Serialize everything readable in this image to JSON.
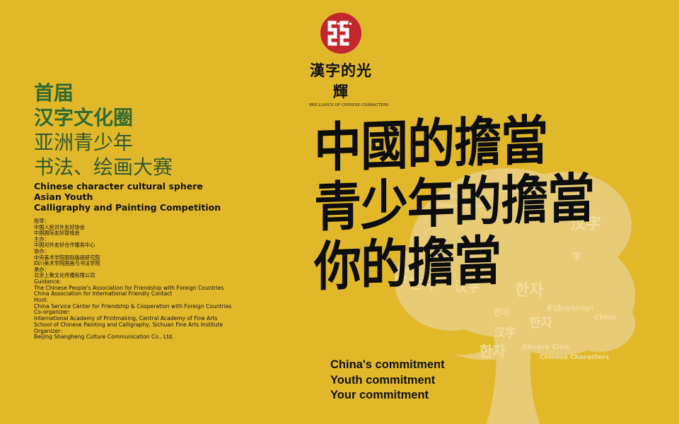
{
  "logo": {
    "name": "漢字的光輝",
    "subtitle": "BRILLIANCE OF CHINESE CHARACTERS",
    "colors": {
      "circle": "#c2272d",
      "mark": "#ffffff"
    }
  },
  "title_cn": {
    "line1": "首届",
    "line2": "汉字文化圈",
    "line3": "亚洲青少年",
    "line4": "书法、绘画大赛"
  },
  "title_en": {
    "line1": "Chinese character cultural sphere",
    "line2": "Asian Youth",
    "line3": "Calligraphy and Painting Competition"
  },
  "credits_cn": [
    "指导：",
    "中国人民对外友好协会",
    "中国国际友好联络会",
    "主办：",
    "中国对外友好合作服务中心",
    "协办：",
    "中央美术学院国际版画研究院",
    "四川美术学院国画与书法学院",
    "承办：",
    "北京上衡文化传播有限公司"
  ],
  "credits_en": [
    "Guidance:",
    "The Chinese People's Association for Friendship with Foreign Countries",
    "China Association for International Friendly Contact",
    "Host:",
    "China Service Center for Friendship & Cooperation with Foreign Countries",
    "Co-organizer:",
    "International Academy of Printmaking, Central Academy of Fine Arts",
    "School of Chinese Painting and Calligraphy, Sichuan Fine Arts Institute",
    "Organizer:",
    "Beijing Shangheng Culture Communication Co., Ltd."
  ],
  "headline": {
    "line1": "中國的擔當",
    "line2": "青少年的擔當",
    "line3": "你的擔當"
  },
  "commitment": {
    "line1": "China's commitment",
    "line2": "Youth commitment",
    "line3": "Your commitment"
  },
  "tree_words": [
    "Chinese",
    "Chinese character",
    "Aksara",
    "汉字",
    "字",
    "한자",
    "한자",
    "अक्षर",
    "ตัวอักษรภาษา",
    "汉字",
    "한자",
    "Aksara Cina",
    "汉字",
    "Chinese Characters",
    "Chine",
    "한자",
    "字",
    "汉字",
    "한자"
  ],
  "colors": {
    "background": "#e2b82b",
    "tree": "#ecd38a",
    "title_green": "#2f6b2f",
    "text": "#111111"
  }
}
